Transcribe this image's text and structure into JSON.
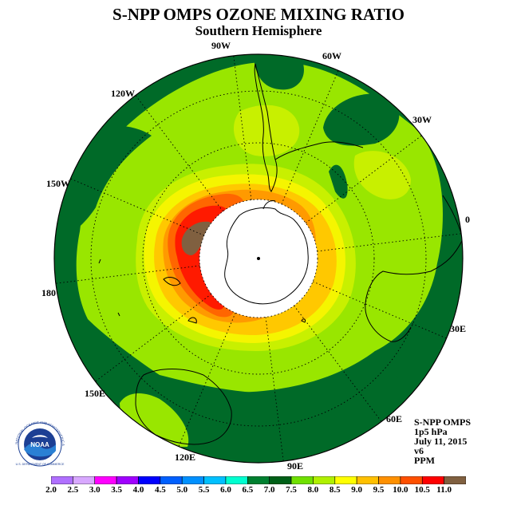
{
  "header": {
    "title": "S-NPP OMPS OZONE MIXING RATIO",
    "subtitle": "Southern Hemisphere"
  },
  "longitude_labels": [
    "90W",
    "60W",
    "120W",
    "30W",
    "150W",
    "0",
    "180",
    "30E",
    "150E",
    "60E",
    "120E",
    "90E"
  ],
  "info": {
    "instrument": "S-NPP OMPS",
    "level": "1p5 hPa",
    "date": "July 11, 2015",
    "version": "v6",
    "units": "PPM"
  },
  "logo": {
    "text": "NOAA",
    "ring_text": "NATIONAL OCEANIC AND ATMOSPHERIC ADMINISTRATION",
    "bottom_text": "U.S. DEPARTMENT OF COMMERCE"
  },
  "colorbar": {
    "ticks": [
      "2.0",
      "2.5",
      "3.0",
      "3.5",
      "4.0",
      "4.5",
      "5.0",
      "5.5",
      "6.0",
      "6.5",
      "7.0",
      "7.5",
      "8.0",
      "8.5",
      "9.0",
      "9.5",
      "10.0",
      "10.5",
      "11.0"
    ],
    "colors": [
      "#b070ff",
      "#d8a8ff",
      "#ff00ff",
      "#a000ff",
      "#0000ff",
      "#0060ff",
      "#0090ff",
      "#00c0ff",
      "#00ffd0",
      "#008030",
      "#006018",
      "#70e000",
      "#b0f000",
      "#ffff00",
      "#ffc000",
      "#ff9000",
      "#ff5000",
      "#ff0000",
      "#806040"
    ]
  },
  "map_colors": {
    "dark_green": "#006a28",
    "light_green": "#99e600",
    "yellow_green": "#c8f000",
    "yellow": "#f5f500",
    "gold": "#ffc800",
    "orange": "#ff9a00",
    "orange_red": "#ff6600",
    "red": "#ff1a00",
    "brown": "#806040",
    "pole": "#ffffff"
  }
}
